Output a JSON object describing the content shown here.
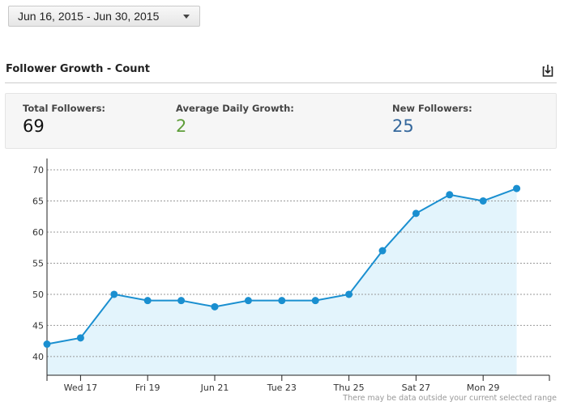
{
  "date_range": {
    "label": "Jun 16, 2015 - Jun 30, 2015"
  },
  "section": {
    "title": "Follower Growth - Count",
    "download_icon": "download-icon"
  },
  "stats": [
    {
      "label": "Total Followers:",
      "value": "69",
      "color": "#111111"
    },
    {
      "label": "Average Daily Growth:",
      "value": "2",
      "color": "#5f9e3a"
    },
    {
      "label": "New Followers:",
      "value": "25",
      "color": "#35689c"
    }
  ],
  "note": "There may be data outside your current selected range",
  "chart_data": {
    "type": "area",
    "x": [
      "Jun 16",
      "Jun 17",
      "Jun 18",
      "Jun 19",
      "Jun 20",
      "Jun 21",
      "Jun 22",
      "Jun 23",
      "Jun 24",
      "Jun 25",
      "Jun 26",
      "Jun 27",
      "Jun 28",
      "Jun 29",
      "Jun 30"
    ],
    "values": [
      42,
      43,
      50,
      49,
      49,
      48,
      49,
      49,
      49,
      50,
      57,
      63,
      66,
      65,
      67
    ],
    "ylim": [
      37,
      70
    ],
    "yticks": [
      40,
      45,
      50,
      55,
      60,
      65,
      70
    ],
    "xtick_labels": [
      {
        "index": 1,
        "label": "Wed 17"
      },
      {
        "index": 3,
        "label": "Fri 19"
      },
      {
        "index": 5,
        "label": "Jun 21"
      },
      {
        "index": 7,
        "label": "Tue 23"
      },
      {
        "index": 9,
        "label": "Thu 25"
      },
      {
        "index": 11,
        "label": "Sat 27"
      },
      {
        "index": 13,
        "label": "Mon 29"
      }
    ],
    "grid": true,
    "line_color": "#1a8fd0",
    "fill_color": "#e3f4fc"
  }
}
